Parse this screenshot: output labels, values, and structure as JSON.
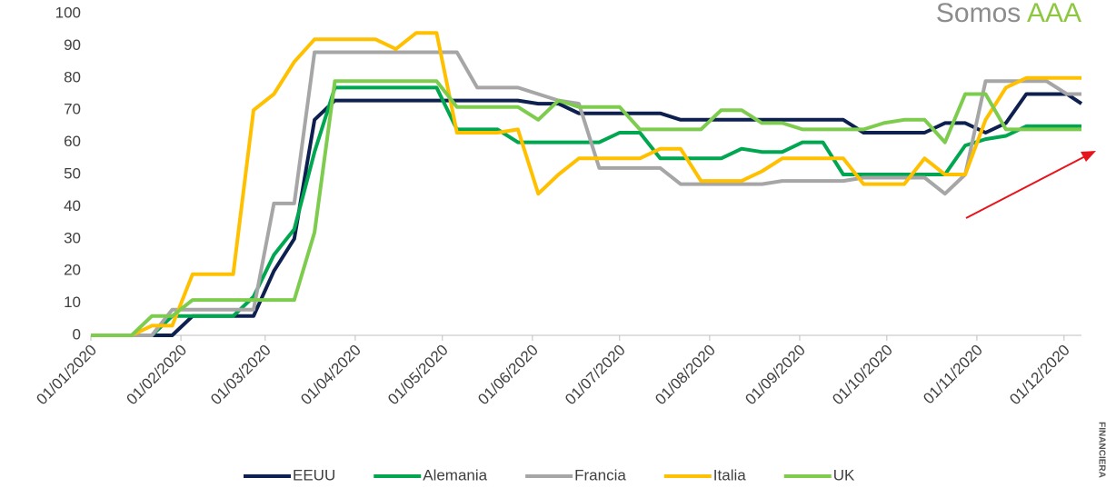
{
  "logo": {
    "prefix": "Somos",
    "highlight": "AAA"
  },
  "side_text": "FINANCIERA",
  "chart_data": {
    "type": "line",
    "x": [
      "01/01/2020",
      "08/01/2020",
      "15/01/2020",
      "22/01/2020",
      "29/01/2020",
      "05/02/2020",
      "12/02/2020",
      "19/02/2020",
      "26/02/2020",
      "04/03/2020",
      "11/03/2020",
      "18/03/2020",
      "25/03/2020",
      "01/04/2020",
      "08/04/2020",
      "15/04/2020",
      "22/04/2020",
      "29/04/2020",
      "06/05/2020",
      "13/05/2020",
      "20/05/2020",
      "27/05/2020",
      "03/06/2020",
      "10/06/2020",
      "17/06/2020",
      "24/06/2020",
      "01/07/2020",
      "08/07/2020",
      "15/07/2020",
      "22/07/2020",
      "29/07/2020",
      "05/08/2020",
      "12/08/2020",
      "19/08/2020",
      "26/08/2020",
      "02/09/2020",
      "09/09/2020",
      "16/09/2020",
      "23/09/2020",
      "30/09/2020",
      "07/10/2020",
      "14/10/2020",
      "21/10/2020",
      "28/10/2020",
      "04/11/2020",
      "11/11/2020",
      "18/11/2020",
      "25/11/2020",
      "02/12/2020",
      "07/12/2020"
    ],
    "series": [
      {
        "name": "EEUU",
        "color": "#0d2050",
        "values": [
          0,
          0,
          0,
          0,
          0,
          6,
          6,
          6,
          6,
          20,
          30,
          67,
          73,
          73,
          73,
          73,
          73,
          73,
          73,
          73,
          73,
          73,
          72,
          72,
          69,
          69,
          69,
          69,
          69,
          67,
          67,
          67,
          67,
          67,
          67,
          67,
          67,
          67,
          63,
          63,
          63,
          63,
          66,
          66,
          63,
          66,
          75,
          75,
          75,
          72
        ]
      },
      {
        "name": "Alemania",
        "color": "#00a650",
        "values": [
          0,
          0,
          0,
          0,
          6,
          6,
          6,
          6,
          12,
          25,
          33,
          57,
          77,
          77,
          77,
          77,
          77,
          77,
          64,
          64,
          64,
          60,
          60,
          60,
          60,
          60,
          63,
          63,
          55,
          55,
          55,
          55,
          58,
          57,
          57,
          60,
          60,
          50,
          50,
          50,
          50,
          50,
          50,
          59,
          61,
          62,
          65,
          65,
          65,
          65
        ]
      },
      {
        "name": "Francia",
        "color": "#a6a6a6",
        "values": [
          0,
          0,
          0,
          0,
          8,
          8,
          8,
          8,
          8,
          41,
          41,
          88,
          88,
          88,
          88,
          88,
          88,
          88,
          88,
          77,
          77,
          77,
          75,
          73,
          72,
          52,
          52,
          52,
          52,
          47,
          47,
          47,
          47,
          47,
          48,
          48,
          48,
          48,
          49,
          49,
          49,
          49,
          44,
          50,
          79,
          79,
          79,
          79,
          75,
          75
        ]
      },
      {
        "name": "Italia",
        "color": "#ffc000",
        "values": [
          0,
          0,
          0,
          3,
          3,
          19,
          19,
          19,
          70,
          75,
          85,
          92,
          92,
          92,
          92,
          89,
          94,
          94,
          63,
          63,
          63,
          64,
          44,
          50,
          55,
          55,
          55,
          55,
          58,
          58,
          48,
          48,
          48,
          51,
          55,
          55,
          55,
          55,
          47,
          47,
          47,
          55,
          50,
          50,
          67,
          77,
          80,
          80,
          80,
          80
        ]
      },
      {
        "name": "UK",
        "color": "#7dcc4e",
        "values": [
          0,
          0,
          0,
          6,
          6,
          11,
          11,
          11,
          11,
          11,
          11,
          32,
          79,
          79,
          79,
          79,
          79,
          79,
          71,
          71,
          71,
          71,
          67,
          73,
          71,
          71,
          71,
          64,
          64,
          64,
          64,
          70,
          70,
          66,
          66,
          64,
          64,
          64,
          64,
          66,
          67,
          67,
          60,
          75,
          75,
          64,
          64,
          64,
          64,
          64
        ]
      }
    ],
    "xlim": [
      "01/01/2020",
      "07/12/2020"
    ],
    "xticks": [
      "01/01/2020",
      "01/02/2020",
      "01/03/2020",
      "01/04/2020",
      "01/05/2020",
      "01/06/2020",
      "01/07/2020",
      "01/08/2020",
      "01/09/2020",
      "01/10/2020",
      "01/11/2020",
      "01/12/2020"
    ],
    "ylim": [
      0,
      100
    ],
    "yticks": [
      0,
      10,
      20,
      30,
      40,
      50,
      60,
      70,
      80,
      90,
      100
    ],
    "grid": false,
    "legend": "bottom"
  }
}
